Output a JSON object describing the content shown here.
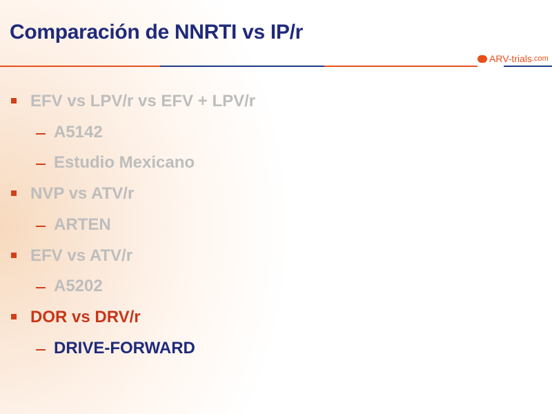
{
  "title": "Comparación de NNRTI vs IP/r",
  "logo": {
    "brand": "ARV-trials",
    "domain": ".com"
  },
  "items": [
    {
      "level": 1,
      "text": "EFV vs LPV/r vs EFV + LPV/r",
      "state": "dimmed"
    },
    {
      "level": 2,
      "text": "A5142",
      "state": "dimmed"
    },
    {
      "level": 2,
      "text": "Estudio Mexicano",
      "state": "dimmed"
    },
    {
      "level": 1,
      "text": "NVP vs ATV/r",
      "state": "dimmed"
    },
    {
      "level": 2,
      "text": "ARTEN",
      "state": "dimmed"
    },
    {
      "level": 1,
      "text": "EFV vs ATV/r",
      "state": "dimmed"
    },
    {
      "level": 2,
      "text": "A5202",
      "state": "dimmed"
    },
    {
      "level": 1,
      "text": "DOR vs DRV/r",
      "state": "active"
    },
    {
      "level": 2,
      "text": "DRIVE-FORWARD",
      "state": "active"
    }
  ],
  "colors": {
    "title": "#1f2a7a",
    "accent": "#d2401a",
    "dimmed": "#bdbdbd",
    "highlight_sub": "#1f2a7a"
  }
}
